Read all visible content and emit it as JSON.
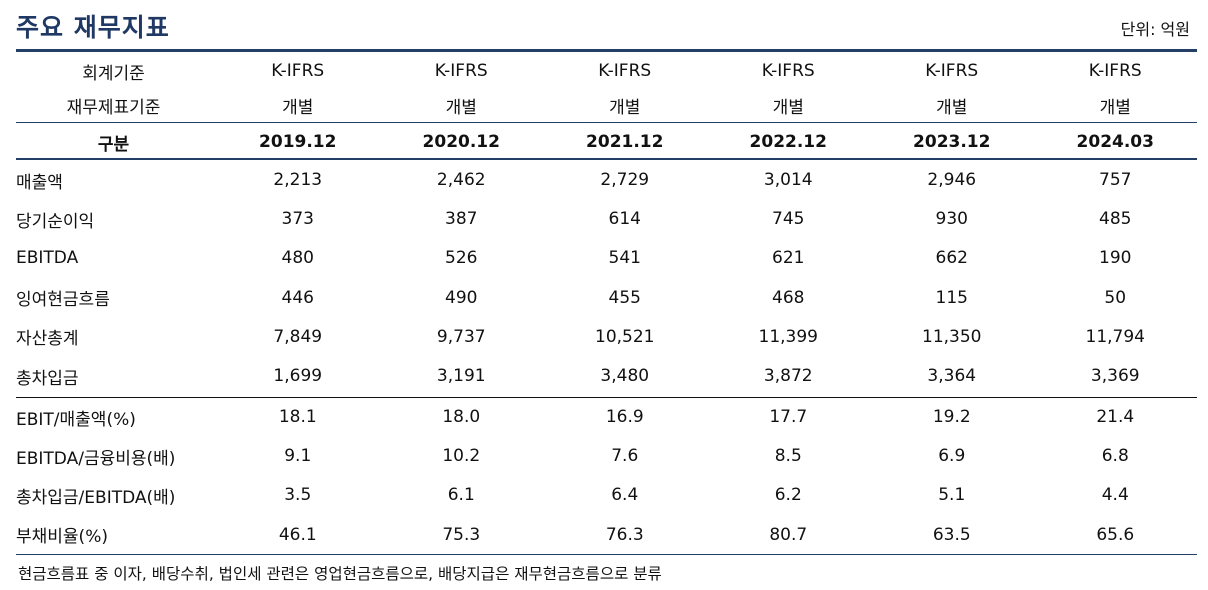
{
  "header": {
    "title": "주요 재무지표",
    "unit": "단위: 억원"
  },
  "table": {
    "basis_rows": [
      {
        "label": "회계기준",
        "values": [
          "K-IFRS",
          "K-IFRS",
          "K-IFRS",
          "K-IFRS",
          "K-IFRS",
          "K-IFRS"
        ]
      },
      {
        "label": "재무제표기준",
        "values": [
          "개별",
          "개별",
          "개별",
          "개별",
          "개별",
          "개별"
        ]
      }
    ],
    "header_row": {
      "label": "구분",
      "periods": [
        "2019.12",
        "2020.12",
        "2021.12",
        "2022.12",
        "2023.12",
        "2024.03"
      ]
    },
    "amount_rows": [
      {
        "label": "매출액",
        "values": [
          "2,213",
          "2,462",
          "2,729",
          "3,014",
          "2,946",
          "757"
        ]
      },
      {
        "label": "당기순이익",
        "values": [
          "373",
          "387",
          "614",
          "745",
          "930",
          "485"
        ]
      },
      {
        "label": "EBITDA",
        "values": [
          "480",
          "526",
          "541",
          "621",
          "662",
          "190"
        ]
      },
      {
        "label": "잉여현금흐름",
        "values": [
          "446",
          "490",
          "455",
          "468",
          "115",
          "50"
        ]
      },
      {
        "label": "자산총계",
        "values": [
          "7,849",
          "9,737",
          "10,521",
          "11,399",
          "11,350",
          "11,794"
        ]
      },
      {
        "label": "총차입금",
        "values": [
          "1,699",
          "3,191",
          "3,480",
          "3,872",
          "3,364",
          "3,369"
        ]
      }
    ],
    "ratio_rows": [
      {
        "label": "EBIT/매출액(%)",
        "values": [
          "18.1",
          "18.0",
          "16.9",
          "17.7",
          "19.2",
          "21.4"
        ]
      },
      {
        "label": "EBITDA/금융비용(배)",
        "values": [
          "9.1",
          "10.2",
          "7.6",
          "8.5",
          "6.9",
          "6.8"
        ]
      },
      {
        "label": "총차입금/EBITDA(배)",
        "values": [
          "3.5",
          "6.1",
          "6.4",
          "6.2",
          "5.1",
          "4.4"
        ]
      },
      {
        "label": "부채비율(%)",
        "values": [
          "46.1",
          "75.3",
          "76.3",
          "80.7",
          "63.5",
          "65.6"
        ]
      }
    ]
  },
  "footnote": "현금흐름표 중 이자, 배당수취, 법인세 관련은 영업현금흐름으로, 배당지급은 재무현금흐름으로 분류",
  "colors": {
    "title": "#1f3864",
    "rule": "#243f66"
  }
}
